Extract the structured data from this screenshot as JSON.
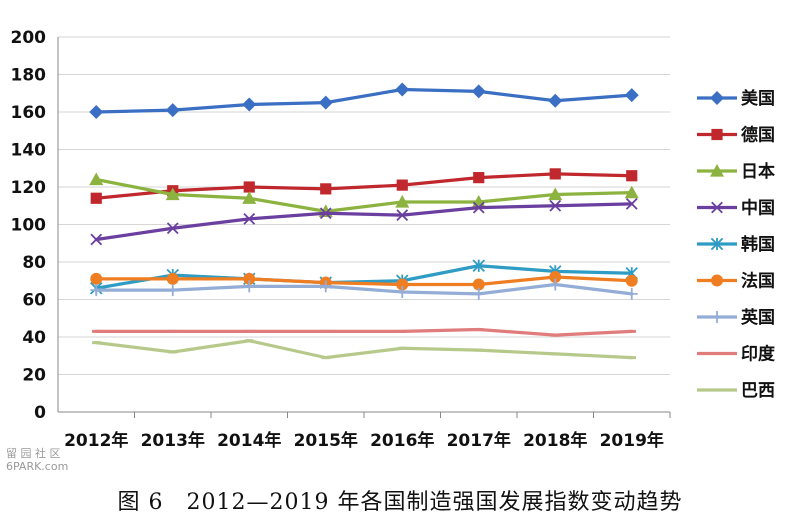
{
  "caption": "图 6　2012—2019 年各国制造强国发展指数变动趋势",
  "watermark": {
    "line1": "留 园 社 区",
    "line2": "6PARK.com"
  },
  "chart_data": {
    "type": "line",
    "title": "",
    "xlabel": "",
    "ylabel": "",
    "ylim": [
      0,
      200
    ],
    "yticks": [
      0,
      20,
      40,
      60,
      80,
      100,
      120,
      140,
      160,
      180,
      200
    ],
    "grid": true,
    "legend": "right",
    "categories": [
      "2012年",
      "2013年",
      "2014年",
      "2015年",
      "2016年",
      "2017年",
      "2018年",
      "2019年"
    ],
    "series": [
      {
        "name": "美国",
        "color": "#3a6fc4",
        "marker": "diamond",
        "values": [
          160,
          161,
          164,
          165,
          172,
          171,
          166,
          169
        ]
      },
      {
        "name": "德国",
        "color": "#c0282d",
        "marker": "square",
        "values": [
          114,
          118,
          120,
          119,
          121,
          125,
          127,
          126
        ]
      },
      {
        "name": "日本",
        "color": "#8cb33f",
        "marker": "triangle",
        "values": [
          124,
          116,
          114,
          107,
          112,
          112,
          116,
          117
        ]
      },
      {
        "name": "中国",
        "color": "#6b3fa0",
        "marker": "x",
        "values": [
          92,
          98,
          103,
          106,
          105,
          109,
          110,
          111
        ]
      },
      {
        "name": "韩国",
        "color": "#2e9cc4",
        "marker": "star",
        "values": [
          66,
          73,
          71,
          69,
          70,
          78,
          75,
          74
        ]
      },
      {
        "name": "法国",
        "color": "#ef7d22",
        "marker": "circle",
        "values": [
          71,
          71,
          71,
          69,
          68,
          68,
          72,
          70
        ]
      },
      {
        "name": "英国",
        "color": "#94add6",
        "marker": "plus",
        "values": [
          65,
          65,
          67,
          67,
          64,
          63,
          68,
          63
        ]
      },
      {
        "name": "印度",
        "color": "#e07c7c",
        "marker": "dash",
        "values": [
          43,
          43,
          43,
          43,
          43,
          44,
          41,
          43
        ]
      },
      {
        "name": "巴西",
        "color": "#b7c98a",
        "marker": "dash",
        "values": [
          37,
          32,
          38,
          29,
          34,
          33,
          31,
          29
        ]
      }
    ]
  }
}
